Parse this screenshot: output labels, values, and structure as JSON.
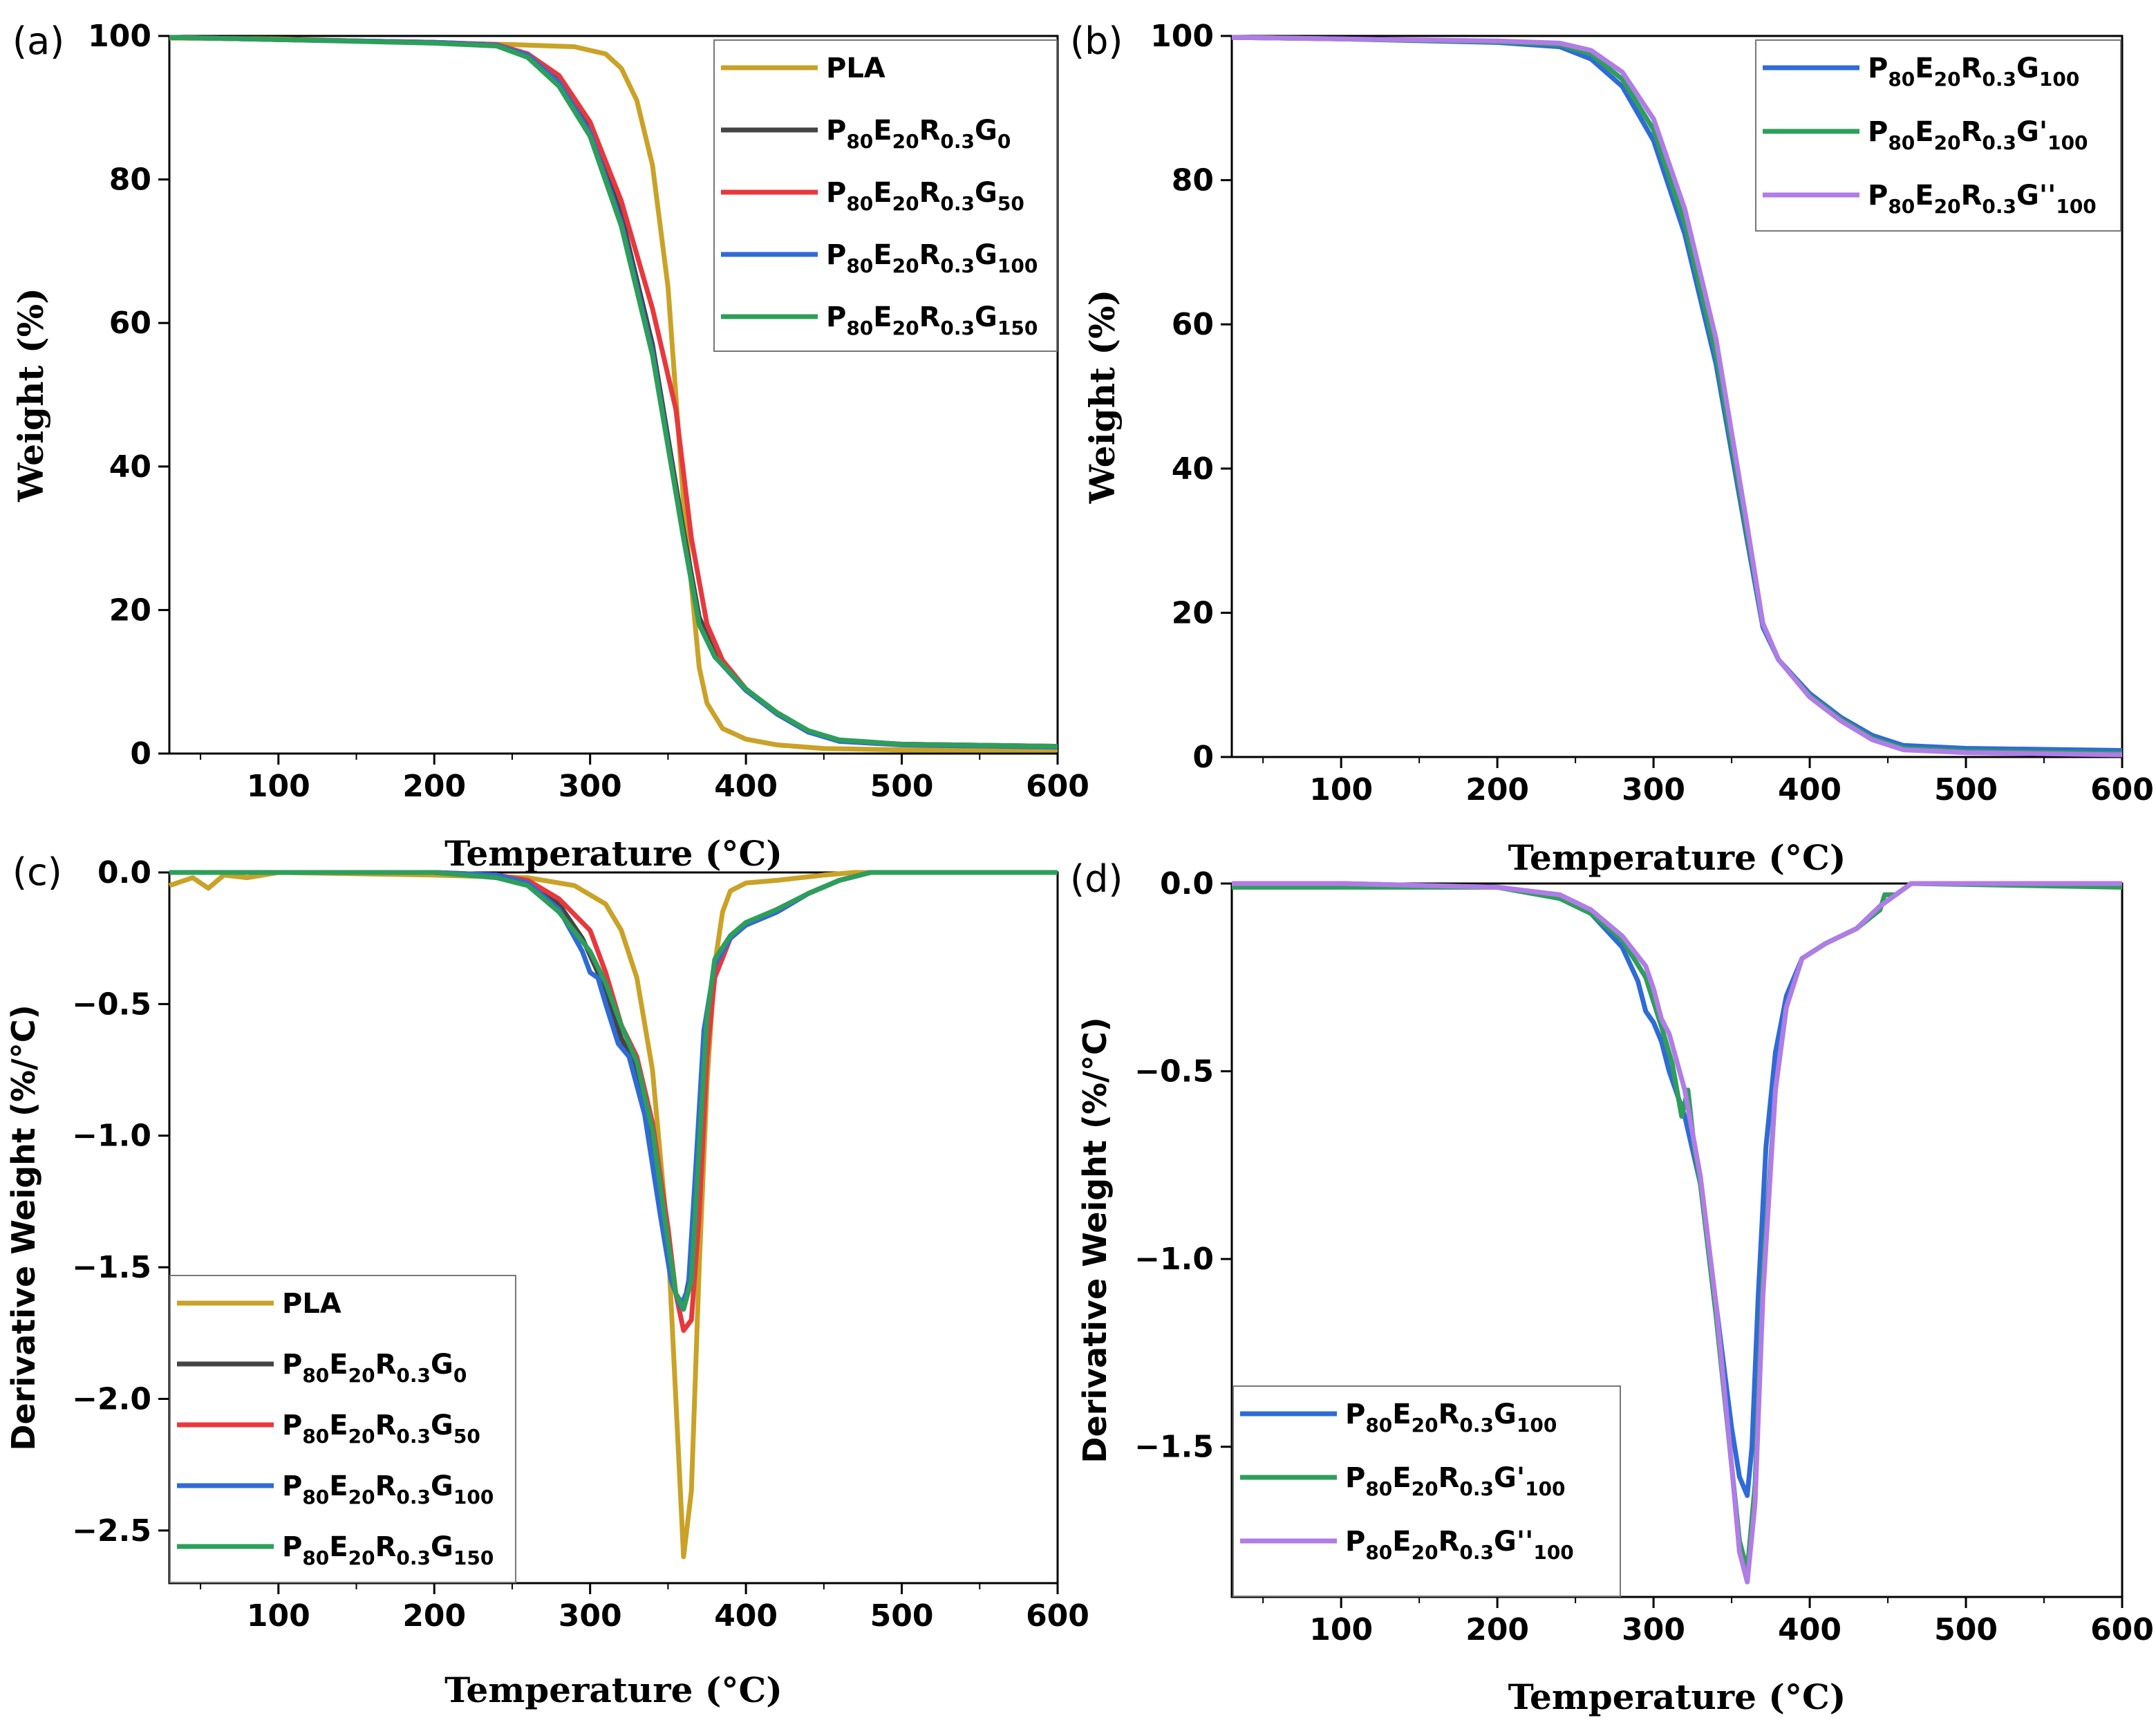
{
  "chart_data": [
    {
      "panel": "(a)",
      "type": "line",
      "title": "",
      "xlabel": "Temperature (°C)",
      "ylabel": "Weight (%)",
      "xlim": [
        30,
        600
      ],
      "ylim": [
        0,
        100
      ],
      "xticks": [
        100,
        200,
        300,
        400,
        500,
        600
      ],
      "yticks": [
        0,
        20,
        40,
        60,
        80,
        100
      ],
      "legend_position": "top-right",
      "series": [
        {
          "name": "PLA",
          "base": "P",
          "color": "#C9A227",
          "x": [
            30,
            100,
            200,
            250,
            290,
            310,
            320,
            330,
            340,
            350,
            360,
            370,
            375,
            385,
            400,
            420,
            450,
            500,
            600
          ],
          "y": [
            99.7,
            99.6,
            99.0,
            98.8,
            98.5,
            97.5,
            95.5,
            91,
            82,
            65,
            35,
            12,
            7,
            3.5,
            2,
            1.2,
            0.7,
            0.5,
            0.5
          ]
        },
        {
          "name": "P80E20R0.3G0",
          "base": "P",
          "sub1": "80",
          "mid1": "E",
          "sub2": "20",
          "mid2": "R",
          "sub3": "0.3",
          "mid3": "G",
          "sub4": "0",
          "color": "#444444",
          "x": [
            30,
            100,
            200,
            240,
            260,
            280,
            300,
            320,
            340,
            360,
            370,
            380,
            400,
            420,
            440,
            460,
            500,
            600
          ],
          "y": [
            99.8,
            99.5,
            99.1,
            98.8,
            97.5,
            94,
            87,
            75,
            57,
            31,
            19,
            14,
            9,
            5.5,
            3,
            1.8,
            1.3,
            1.0
          ]
        },
        {
          "name": "P80E20R0.3G50",
          "base": "P",
          "sub1": "80",
          "mid1": "E",
          "sub2": "20",
          "mid2": "R",
          "sub3": "0.3",
          "mid3": "G",
          "sub4": "50",
          "color": "#E8383D",
          "x": [
            30,
            100,
            200,
            240,
            260,
            280,
            300,
            320,
            340,
            355,
            365,
            375,
            385,
            400,
            420,
            440,
            460,
            500,
            600
          ],
          "y": [
            99.8,
            99.5,
            99.1,
            98.8,
            97.5,
            94.5,
            88,
            77,
            62,
            48,
            30,
            18,
            13,
            9,
            5.5,
            3,
            1.8,
            1.3,
            1.0
          ]
        },
        {
          "name": "P80E20R0.3G100",
          "base": "P",
          "sub1": "80",
          "mid1": "E",
          "sub2": "20",
          "mid2": "R",
          "sub3": "0.3",
          "mid3": "G",
          "sub4": "100",
          "color": "#2F6BD6",
          "x": [
            30,
            100,
            200,
            240,
            260,
            280,
            300,
            320,
            340,
            360,
            370,
            380,
            400,
            420,
            440,
            460,
            500,
            600
          ],
          "y": [
            99.8,
            99.5,
            99.1,
            98.7,
            97.3,
            93.5,
            86.5,
            74,
            56,
            30,
            18,
            13.5,
            8.8,
            5.5,
            3,
            1.7,
            1.2,
            0.9
          ]
        },
        {
          "name": "P80E20R0.3G150",
          "base": "P",
          "sub1": "80",
          "mid1": "E",
          "sub2": "20",
          "mid2": "R",
          "sub3": "0.3",
          "mid3": "G",
          "sub4": "150",
          "color": "#2E9E5B",
          "x": [
            30,
            100,
            200,
            240,
            260,
            280,
            300,
            320,
            340,
            360,
            370,
            380,
            400,
            420,
            440,
            460,
            500,
            600
          ],
          "y": [
            99.8,
            99.5,
            99.0,
            98.6,
            97.0,
            93,
            86,
            73.5,
            55.5,
            30,
            18,
            13.5,
            9,
            5.7,
            3.2,
            1.9,
            1.3,
            1.0
          ]
        }
      ]
    },
    {
      "panel": "(b)",
      "type": "line",
      "title": "",
      "xlabel": "Temperature (°C)",
      "ylabel": "Weight (%)",
      "xlim": [
        30,
        600
      ],
      "ylim": [
        0,
        100
      ],
      "xticks": [
        100,
        200,
        300,
        400,
        500,
        600
      ],
      "yticks": [
        0,
        20,
        40,
        60,
        80,
        100
      ],
      "legend_position": "top-right",
      "series": [
        {
          "name": "P80E20R0.3G100",
          "base": "P",
          "sub1": "80",
          "mid1": "E",
          "sub2": "20",
          "mid2": "R",
          "sub3": "0.3",
          "mid3": "G",
          "sub4": "100",
          "color": "#2F6BD6",
          "x": [
            30,
            100,
            200,
            240,
            260,
            280,
            300,
            320,
            340,
            360,
            370,
            380,
            400,
            420,
            440,
            460,
            500,
            600
          ],
          "y": [
            99.8,
            99.6,
            99.1,
            98.5,
            96.8,
            93,
            85.5,
            72.5,
            54.5,
            30,
            18,
            13.5,
            8.8,
            5.5,
            3,
            1.6,
            1.2,
            0.9
          ]
        },
        {
          "name": "P80E20R0.3G'100",
          "base": "P",
          "sub1": "80",
          "mid1": "E",
          "sub2": "20",
          "mid2": "R",
          "sub3": "0.3",
          "mid3": "G'",
          "sub4": "100",
          "color": "#2E9E5B",
          "x": [
            30,
            100,
            200,
            240,
            260,
            280,
            300,
            320,
            340,
            360,
            370,
            380,
            400,
            420,
            440,
            460,
            500,
            600
          ],
          "y": [
            99.8,
            99.6,
            99.2,
            98.8,
            97.5,
            94,
            87,
            74,
            56,
            31,
            18.5,
            13.5,
            8.5,
            5.2,
            2.6,
            1.2,
            0.8,
            0.5
          ]
        },
        {
          "name": "P80E20R0.3G''100",
          "base": "P",
          "sub1": "80",
          "mid1": "E",
          "sub2": "20",
          "mid2": "R",
          "sub3": "0.3",
          "mid3": "G''",
          "sub4": "100",
          "color": "#B07CE6",
          "x": [
            30,
            100,
            200,
            240,
            260,
            280,
            300,
            320,
            340,
            360,
            370,
            380,
            400,
            420,
            440,
            460,
            500,
            600
          ],
          "y": [
            99.8,
            99.6,
            99.3,
            99.0,
            98.0,
            95,
            88.5,
            76,
            58,
            32,
            18.5,
            13.5,
            8.3,
            5.0,
            2.4,
            1.0,
            0.6,
            0.3
          ]
        }
      ]
    },
    {
      "panel": "(c)",
      "type": "line",
      "title": "",
      "xlabel": "Temperature (°C)",
      "ylabel": "Derivative Weight (%/°C)",
      "xlim": [
        30,
        600
      ],
      "ylim": [
        -2.7,
        0
      ],
      "xticks": [
        100,
        200,
        300,
        400,
        500,
        600
      ],
      "yticks": [
        0.0,
        -0.5,
        -1.0,
        -1.5,
        -2.0,
        -2.5
      ],
      "ytick_labels": [
        "0.0",
        "−0.5",
        "−1.0",
        "−1.5",
        "−2.0",
        "−2.5"
      ],
      "legend_position": "bottom-left",
      "series": [
        {
          "name": "PLA",
          "base": "P",
          "color": "#C9A227",
          "x": [
            30,
            45,
            55,
            65,
            80,
            100,
            200,
            260,
            290,
            310,
            320,
            330,
            340,
            350,
            355,
            360,
            365,
            370,
            375,
            380,
            385,
            390,
            400,
            420,
            450,
            470,
            600
          ],
          "y": [
            -0.05,
            -0.02,
            -0.06,
            -0.01,
            -0.02,
            0,
            -0.01,
            -0.02,
            -0.05,
            -0.12,
            -0.22,
            -0.4,
            -0.75,
            -1.4,
            -2.0,
            -2.6,
            -2.35,
            -1.5,
            -0.8,
            -0.35,
            -0.15,
            -0.07,
            -0.04,
            -0.03,
            -0.01,
            0,
            0
          ]
        },
        {
          "name": "P80E20R0.3G0",
          "base": "P",
          "sub1": "80",
          "mid1": "E",
          "sub2": "20",
          "mid2": "R",
          "sub3": "0.3",
          "mid3": "G",
          "sub4": "0",
          "color": "#444444",
          "x": [
            30,
            100,
            200,
            240,
            260,
            280,
            295,
            305,
            315,
            320,
            330,
            340,
            350,
            355,
            360,
            365,
            370,
            375,
            380,
            390,
            400,
            420,
            440,
            460,
            480,
            600
          ],
          "y": [
            0,
            0,
            0,
            -0.01,
            -0.04,
            -0.12,
            -0.25,
            -0.38,
            -0.55,
            -0.63,
            -0.75,
            -1.05,
            -1.45,
            -1.6,
            -1.65,
            -1.5,
            -1.0,
            -0.55,
            -0.35,
            -0.25,
            -0.2,
            -0.15,
            -0.08,
            -0.03,
            0,
            0
          ]
        },
        {
          "name": "P80E20R0.3G50",
          "base": "P",
          "sub1": "80",
          "mid1": "E",
          "sub2": "20",
          "mid2": "R",
          "sub3": "0.3",
          "mid3": "G",
          "sub4": "50",
          "color": "#E8383D",
          "x": [
            30,
            100,
            200,
            240,
            260,
            280,
            300,
            310,
            320,
            330,
            340,
            350,
            355,
            360,
            365,
            370,
            375,
            380,
            390,
            400,
            420,
            440,
            460,
            480,
            600
          ],
          "y": [
            0,
            0,
            0,
            -0.01,
            -0.03,
            -0.1,
            -0.22,
            -0.38,
            -0.58,
            -0.7,
            -0.95,
            -1.35,
            -1.6,
            -1.74,
            -1.7,
            -1.3,
            -0.7,
            -0.4,
            -0.25,
            -0.2,
            -0.15,
            -0.08,
            -0.03,
            0,
            0
          ]
        },
        {
          "name": "P80E20R0.3G100",
          "base": "P",
          "sub1": "80",
          "mid1": "E",
          "sub2": "20",
          "mid2": "R",
          "sub3": "0.3",
          "mid3": "G",
          "sub4": "100",
          "color": "#2F6BD6",
          "x": [
            30,
            100,
            200,
            240,
            260,
            280,
            295,
            300,
            305,
            310,
            318,
            325,
            335,
            345,
            352,
            358,
            363,
            368,
            373,
            380,
            390,
            400,
            420,
            440,
            460,
            480,
            600
          ],
          "y": [
            0,
            0,
            0,
            -0.01,
            -0.04,
            -0.14,
            -0.3,
            -0.38,
            -0.4,
            -0.5,
            -0.65,
            -0.7,
            -0.92,
            -1.3,
            -1.55,
            -1.65,
            -1.58,
            -1.1,
            -0.6,
            -0.35,
            -0.25,
            -0.2,
            -0.15,
            -0.08,
            -0.03,
            0,
            0
          ]
        },
        {
          "name": "P80E20R0.3G150",
          "base": "P",
          "sub1": "80",
          "mid1": "E",
          "sub2": "20",
          "mid2": "R",
          "sub3": "0.3",
          "mid3": "G",
          "sub4": "150",
          "color": "#2E9E5B",
          "x": [
            30,
            100,
            200,
            240,
            260,
            280,
            300,
            310,
            320,
            330,
            340,
            350,
            355,
            360,
            365,
            370,
            375,
            380,
            390,
            400,
            420,
            440,
            460,
            480,
            600
          ],
          "y": [
            0,
            0,
            0,
            -0.02,
            -0.05,
            -0.15,
            -0.3,
            -0.42,
            -0.58,
            -0.72,
            -0.98,
            -1.4,
            -1.6,
            -1.66,
            -1.55,
            -1.05,
            -0.55,
            -0.33,
            -0.24,
            -0.19,
            -0.14,
            -0.08,
            -0.03,
            0,
            0
          ]
        }
      ]
    },
    {
      "panel": "(d)",
      "type": "line",
      "title": "",
      "xlabel": "Temperature (°C)",
      "ylabel": "Derivative Weight (%/°C)",
      "xlim": [
        30,
        600
      ],
      "ylim": [
        -1.9,
        0
      ],
      "xticks": [
        100,
        200,
        300,
        400,
        500,
        600
      ],
      "yticks": [
        0.0,
        -0.5,
        -1.0,
        -1.5
      ],
      "ytick_labels": [
        "0.0",
        "−0.5",
        "−1.0",
        "−1.5"
      ],
      "legend_position": "bottom-left",
      "series": [
        {
          "name": "P80E20R0.3G100",
          "base": "P",
          "sub1": "80",
          "mid1": "E",
          "sub2": "20",
          "mid2": "R",
          "sub3": "0.3",
          "mid3": "G",
          "sub4": "100",
          "color": "#2F6BD6",
          "x": [
            30,
            100,
            200,
            240,
            260,
            280,
            290,
            295,
            300,
            305,
            310,
            320,
            330,
            340,
            350,
            355,
            360,
            363,
            367,
            372,
            378,
            385,
            395,
            410,
            430,
            445,
            455,
            465,
            600
          ],
          "y": [
            0,
            0,
            -0.01,
            -0.03,
            -0.08,
            -0.17,
            -0.26,
            -0.34,
            -0.37,
            -0.42,
            -0.5,
            -0.62,
            -0.8,
            -1.12,
            -1.45,
            -1.58,
            -1.63,
            -1.5,
            -1.1,
            -0.7,
            -0.45,
            -0.3,
            -0.2,
            -0.16,
            -0.12,
            -0.06,
            -0.03,
            0,
            0
          ]
        },
        {
          "name": "P80E20R0.3G'100",
          "base": "P",
          "sub1": "80",
          "mid1": "E",
          "sub2": "20",
          "mid2": "R",
          "sub3": "0.3",
          "mid3": "G'",
          "sub4": "100",
          "color": "#2E9E5B",
          "x": [
            30,
            100,
            200,
            240,
            260,
            280,
            295,
            305,
            312,
            318,
            322,
            326,
            330,
            340,
            350,
            355,
            360,
            365,
            370,
            378,
            385,
            395,
            410,
            430,
            445,
            448,
            455,
            465,
            600
          ],
          "y": [
            -0.01,
            -0.01,
            -0.01,
            -0.04,
            -0.08,
            -0.15,
            -0.25,
            -0.38,
            -0.48,
            -0.62,
            -0.55,
            -0.7,
            -0.8,
            -1.15,
            -1.55,
            -1.75,
            -1.83,
            -1.6,
            -1.05,
            -0.55,
            -0.33,
            -0.2,
            -0.16,
            -0.12,
            -0.07,
            -0.03,
            -0.03,
            0,
            -0.01
          ]
        },
        {
          "name": "P80E20R0.3G''100",
          "base": "P",
          "sub1": "80",
          "mid1": "E",
          "sub2": "20",
          "mid2": "R",
          "sub3": "0.3",
          "mid3": "G''",
          "sub4": "100",
          "color": "#B07CE6",
          "x": [
            30,
            100,
            200,
            240,
            260,
            280,
            295,
            300,
            305,
            310,
            320,
            330,
            340,
            350,
            355,
            360,
            365,
            370,
            378,
            385,
            395,
            410,
            430,
            445,
            455,
            465,
            600
          ],
          "y": [
            0,
            0,
            -0.01,
            -0.03,
            -0.07,
            -0.14,
            -0.22,
            -0.28,
            -0.36,
            -0.4,
            -0.55,
            -0.78,
            -1.12,
            -1.55,
            -1.78,
            -1.86,
            -1.65,
            -1.1,
            -0.55,
            -0.33,
            -0.2,
            -0.16,
            -0.12,
            -0.06,
            -0.03,
            0,
            0
          ]
        }
      ]
    }
  ]
}
